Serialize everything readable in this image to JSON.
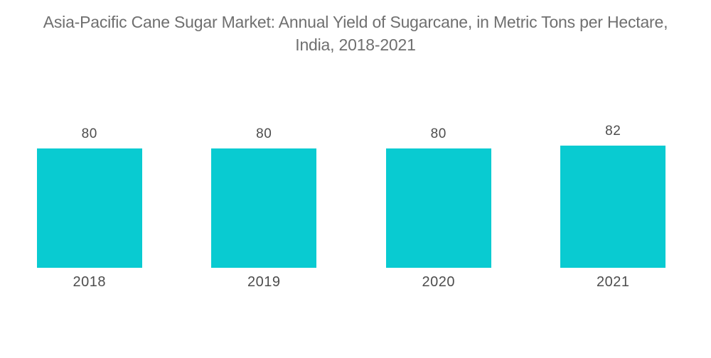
{
  "page": {
    "background": "#ffffff"
  },
  "header": {
    "title_line1": "Asia-Pacific Cane Sugar Market: Annual Yield of Sugarcane, in Metric Tons per Hectare,",
    "title_line2": "India, 2018-2021"
  },
  "colors": {
    "bar": "#09cbd1",
    "title_text": "#6f6f6f",
    "label_text": "#4d4d4d"
  },
  "chart_data": {
    "type": "bar",
    "title": "Asia-Pacific Cane Sugar Market: Annual Yield of Sugarcane, in Metric Tons per Hectare, India, 2018-2021",
    "categories": [
      "2018",
      "2019",
      "2020",
      "2021"
    ],
    "values": [
      80,
      80,
      80,
      82
    ],
    "unit": "Metric Tons per Hectare",
    "bar_color": "#09cbd1",
    "value_labels_shown": true,
    "grid": false,
    "axes_visible": false,
    "legend_position": "none",
    "ylim": [
      0,
      128
    ]
  }
}
